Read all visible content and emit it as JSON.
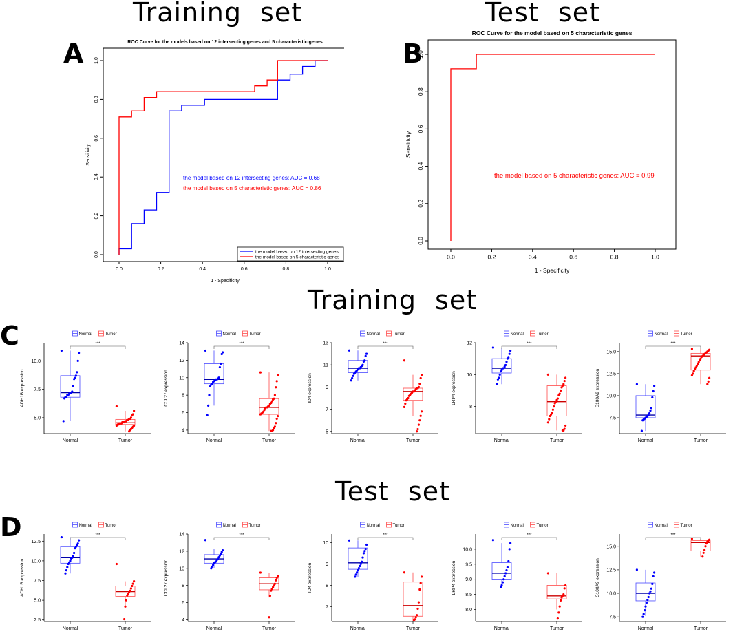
{
  "section_titles": {
    "training_top": "Training  set",
    "test_top": "Test  set",
    "training_mid": "Training  set",
    "test_mid": "Test  set"
  },
  "panel_labels": {
    "a": "A",
    "b": "B",
    "c": "C",
    "d": "D"
  },
  "colors": {
    "blue": "#0000ff",
    "red": "#ff0000",
    "box_blue": "#4a4aff",
    "box_red": "#ff4a4a"
  },
  "chart_data": [
    {
      "id": "roc_train",
      "type": "line",
      "title": "ROC Curve for the models based on 12 intersecting genes and  5 characteristic genes",
      "xlabel": "1 - Specificity",
      "ylabel": "Sensitivity",
      "xlim": [
        0,
        1
      ],
      "ylim": [
        0,
        1
      ],
      "xticks": [
        "0.0",
        "0.2",
        "0.4",
        "0.6",
        "0.8",
        "1.0"
      ],
      "yticks": [
        "0.0",
        "0.2",
        "0.4",
        "0.6",
        "0.8",
        "1.0"
      ],
      "series": [
        {
          "name": "the model based on 12 intersecting genes",
          "color": "#0000ff",
          "x": [
            0,
            0,
            0.06,
            0.06,
            0.12,
            0.12,
            0.18,
            0.18,
            0.24,
            0.24,
            0.3,
            0.3,
            0.41,
            0.41,
            0.76,
            0.76,
            0.82,
            0.82,
            0.88,
            0.88,
            0.94,
            0.94,
            1.0
          ],
          "y": [
            0,
            0.03,
            0.03,
            0.16,
            0.16,
            0.23,
            0.23,
            0.32,
            0.32,
            0.74,
            0.74,
            0.77,
            0.77,
            0.8,
            0.8,
            0.9,
            0.9,
            0.93,
            0.93,
            0.97,
            0.97,
            1.0,
            1.0
          ]
        },
        {
          "name": "the model based on 5 characteristic genes",
          "color": "#ff0000",
          "x": [
            0,
            0,
            0.06,
            0.06,
            0.12,
            0.12,
            0.18,
            0.18,
            0.3,
            0.3,
            0.65,
            0.65,
            0.71,
            0.71,
            0.76,
            0.76,
            1.0
          ],
          "y": [
            0,
            0.71,
            0.71,
            0.74,
            0.74,
            0.81,
            0.81,
            0.84,
            0.84,
            0.84,
            0.84,
            0.87,
            0.87,
            0.9,
            0.9,
            1.0,
            1.0
          ]
        }
      ],
      "annotations": [
        {
          "text": "the model based on 12 intersecting genes: AUC =  0.68",
          "color": "#0000ff"
        },
        {
          "text": "the model based on 5 characteristic genes: AUC =  0.86",
          "color": "#ff0000"
        }
      ],
      "legend": [
        "the model based on 12 intersecting genes",
        "the model based on 5 characteristic genes"
      ],
      "legend_position": "bottom-right"
    },
    {
      "id": "roc_test",
      "type": "line",
      "title": "ROC Curve for the model based on 5 characteristic genes",
      "xlabel": "1 - Specificity",
      "ylabel": "Sensitivity",
      "xlim": [
        0,
        1
      ],
      "ylim": [
        0,
        1
      ],
      "xticks": [
        "0.0",
        "0.2",
        "0.4",
        "0.6",
        "0.8",
        "1.0"
      ],
      "yticks": [
        "0.0",
        "0.2",
        "0.4",
        "0.6",
        "0.8",
        "1.0"
      ],
      "series": [
        {
          "name": "the model based on 5 characteristic genes",
          "color": "#ff0000",
          "x": [
            0,
            0,
            0.125,
            0.125,
            1.0
          ],
          "y": [
            0,
            0.923,
            0.923,
            1.0,
            1.0
          ]
        }
      ],
      "annotations": [
        {
          "text": "the model based on 5 characteristic genes: AUC =  0.99",
          "color": "#ff0000"
        }
      ]
    }
  ],
  "boxplots": {
    "legend": {
      "normal": "Normal",
      "tumor": "Tumor"
    },
    "signif": "***",
    "categories": [
      "Normal",
      "Tumor"
    ],
    "training": [
      {
        "gene": "ADH1B",
        "ylabel": "ADH1B expression",
        "ylim": [
          3.6,
          11.6
        ],
        "ticks": [
          5.0,
          7.5,
          10.0
        ],
        "tick_labels": [
          "5.0",
          "7.5",
          "10.0"
        ],
        "normal": {
          "q1": 6.8,
          "med": 7.2,
          "q3": 8.7,
          "min": 4.7,
          "max": 10.9,
          "pts": [
            10.9,
            10.7,
            10.0,
            9.0,
            8.7,
            8.5,
            8.4,
            7.8,
            7.3,
            7.2,
            7.2,
            7.1,
            7.0,
            7.0,
            6.8,
            6.8,
            6.7,
            4.7
          ]
        },
        "tumor": {
          "q1": 4.4,
          "med": 4.55,
          "q3": 4.85,
          "min": 3.8,
          "max": 5.6,
          "pts": [
            6.0,
            5.6,
            5.3,
            5.2,
            5.0,
            4.9,
            4.9,
            4.8,
            4.8,
            4.7,
            4.7,
            4.6,
            4.6,
            4.6,
            4.5,
            4.5,
            4.5,
            4.4,
            4.4,
            4.3,
            4.3,
            4.2,
            4.1,
            4.0,
            3.9,
            3.8
          ]
        }
      },
      {
        "gene": "CCL27",
        "ylabel": "CCL27 expression",
        "ylim": [
          3.6,
          14
        ],
        "ticks": [
          4,
          6,
          8,
          10,
          12,
          14
        ],
        "tick_labels": [
          "4",
          "6",
          "8",
          "10",
          "12",
          "14"
        ],
        "normal": {
          "q1": 9.3,
          "med": 9.8,
          "q3": 11.6,
          "min": 6.8,
          "max": 13.1,
          "pts": [
            13.1,
            12.9,
            12.7,
            11.6,
            11.2,
            10.0,
            9.9,
            9.8,
            9.8,
            9.7,
            9.6,
            9.5,
            9.3,
            9.2,
            9.0,
            8.0,
            6.8,
            5.7
          ]
        },
        "tumor": {
          "q1": 5.8,
          "med": 6.6,
          "q3": 7.6,
          "min": 3.9,
          "max": 10.6,
          "pts": [
            10.6,
            10.3,
            9.6,
            8.9,
            8.0,
            7.6,
            7.5,
            7.3,
            7.1,
            7.0,
            6.8,
            6.7,
            6.6,
            6.6,
            6.5,
            6.3,
            6.1,
            6.0,
            5.9,
            5.8,
            5.6,
            5.3,
            4.8,
            4.4,
            4.2,
            4.0,
            3.9,
            3.9
          ]
        }
      },
      {
        "gene": "ID4",
        "ylabel": "ID4 expression",
        "ylim": [
          4.8,
          13
        ],
        "ticks": [
          5,
          7,
          9,
          11,
          13
        ],
        "tick_labels": [
          "5",
          "7",
          "9",
          "11",
          "13"
        ],
        "normal": {
          "q1": 10.3,
          "med": 10.7,
          "q3": 11.4,
          "min": 9.6,
          "max": 12.3,
          "pts": [
            12.3,
            12.0,
            11.8,
            11.4,
            11.3,
            11.0,
            10.9,
            10.8,
            10.7,
            10.7,
            10.6,
            10.5,
            10.4,
            10.3,
            10.2,
            10.0,
            9.8,
            9.6
          ]
        },
        "tumor": {
          "q1": 7.8,
          "med": 8.6,
          "q3": 8.9,
          "min": 6.4,
          "max": 10.1,
          "pts": [
            11.4,
            10.1,
            9.8,
            9.3,
            9.0,
            8.9,
            8.9,
            8.8,
            8.7,
            8.6,
            8.6,
            8.5,
            8.4,
            8.3,
            8.2,
            8.0,
            7.9,
            7.8,
            7.5,
            7.2,
            6.8,
            6.4,
            6.0,
            5.6,
            5.2,
            5.0
          ]
        }
      },
      {
        "gene": "LRP4",
        "ylabel": "LRP4 expression",
        "ylim": [
          6.3,
          12
        ],
        "ticks": [
          8,
          10,
          12
        ],
        "tick_labels": [
          "8",
          "10",
          "12"
        ],
        "normal": {
          "q1": 10.1,
          "med": 10.4,
          "q3": 11.0,
          "min": 9.4,
          "max": 11.7,
          "pts": [
            11.7,
            11.5,
            11.3,
            11.1,
            11.0,
            10.8,
            10.6,
            10.5,
            10.4,
            10.4,
            10.3,
            10.2,
            10.0,
            9.8,
            9.7,
            9.4
          ]
        },
        "tumor": {
          "q1": 7.4,
          "med": 8.3,
          "q3": 9.3,
          "min": 6.5,
          "max": 10.0,
          "pts": [
            10.0,
            9.8,
            9.6,
            9.4,
            9.3,
            9.2,
            9.0,
            8.8,
            8.7,
            8.5,
            8.4,
            8.3,
            8.2,
            8.0,
            7.8,
            7.6,
            7.5,
            7.4,
            7.2,
            7.0,
            6.8,
            6.6,
            6.5,
            6.5
          ]
        }
      },
      {
        "gene": "S100A9",
        "ylabel": "S100A9 expression",
        "ylim": [
          5.7,
          16
        ],
        "ticks": [
          7.5,
          10.0,
          12.5,
          15.0
        ],
        "tick_labels": [
          "7.5",
          "10.0",
          "12.5",
          "15.0"
        ],
        "normal": {
          "q1": 7.5,
          "med": 7.8,
          "q3": 10.0,
          "min": 6.0,
          "max": 11.3,
          "pts": [
            11.3,
            11.1,
            10.5,
            9.8,
            8.6,
            8.3,
            8.0,
            7.8,
            7.7,
            7.6,
            7.5,
            7.4,
            7.3,
            7.2,
            6.0
          ]
        },
        "tumor": {
          "q1": 12.9,
          "med": 14.5,
          "q3": 14.8,
          "min": 11.3,
          "max": 15.3,
          "pts": [
            15.3,
            15.2,
            15.1,
            15.0,
            14.9,
            14.8,
            14.7,
            14.6,
            14.5,
            14.4,
            14.2,
            14.0,
            13.8,
            13.6,
            13.4,
            13.2,
            13.0,
            12.8,
            12.5,
            12.3,
            12.0,
            11.6,
            11.3
          ]
        }
      }
    ],
    "test": [
      {
        "gene": "ADH1B",
        "ylabel": "ADH1B expression",
        "ylim": [
          2.3,
          13.4
        ],
        "ticks": [
          2.5,
          5.0,
          7.5,
          10.0,
          12.5
        ],
        "tick_labels": [
          "2.5",
          "5.0",
          "7.5",
          "10.0",
          "12.5"
        ],
        "normal": {
          "q1": 9.7,
          "med": 10.4,
          "q3": 11.8,
          "min": 8.4,
          "max": 13.0,
          "pts": [
            13.0,
            12.6,
            12.2,
            12.0,
            11.8,
            11.6,
            11.0,
            10.6,
            10.4,
            10.3,
            10.0,
            9.8,
            9.6,
            9.2,
            8.8,
            8.4
          ]
        },
        "tumor": {
          "q1": 5.5,
          "med": 6.1,
          "q3": 6.8,
          "min": 4.2,
          "max": 7.4,
          "pts": [
            9.6,
            7.4,
            7.1,
            6.8,
            6.5,
            6.2,
            6.0,
            5.8,
            5.6,
            5.0,
            4.2,
            2.6
          ]
        }
      },
      {
        "gene": "CCL27",
        "ylabel": "CCL27 expression",
        "ylim": [
          3.8,
          14
        ],
        "ticks": [
          4,
          6,
          8,
          10,
          12,
          14
        ],
        "tick_labels": [
          "4",
          "6",
          "8",
          "10",
          "12",
          "14"
        ],
        "normal": {
          "q1": 10.6,
          "med": 11.1,
          "q3": 11.6,
          "min": 10.0,
          "max": 12.3,
          "pts": [
            13.3,
            12.1,
            11.9,
            11.7,
            11.5,
            11.3,
            11.1,
            11.0,
            10.8,
            10.7,
            10.6,
            10.4,
            10.2,
            10.0
          ]
        },
        "tumor": {
          "q1": 7.5,
          "med": 8.2,
          "q3": 8.9,
          "min": 6.6,
          "max": 9.5,
          "pts": [
            9.5,
            9.1,
            8.9,
            8.6,
            8.2,
            8.0,
            7.8,
            7.6,
            7.4,
            6.8,
            4.3
          ]
        }
      },
      {
        "gene": "ID4",
        "ylabel": "ID4 expression",
        "ylim": [
          6.3,
          10.4
        ],
        "ticks": [
          7,
          8,
          9,
          10
        ],
        "tick_labels": [
          "7",
          "8",
          "9",
          "10"
        ],
        "normal": {
          "q1": 8.75,
          "med": 9.05,
          "q3": 9.75,
          "min": 8.4,
          "max": 10.1,
          "pts": [
            10.1,
            9.9,
            9.7,
            9.6,
            9.5,
            9.3,
            9.1,
            9.0,
            8.9,
            8.8,
            8.7,
            8.6,
            8.5,
            8.4
          ]
        },
        "tumor": {
          "q1": 6.55,
          "med": 7.05,
          "q3": 8.15,
          "min": 6.35,
          "max": 8.6,
          "pts": [
            8.6,
            8.4,
            8.1,
            7.8,
            7.2,
            6.9,
            6.6,
            6.5,
            6.4,
            6.35
          ]
        }
      },
      {
        "gene": "LRP4",
        "ylabel": "LRP4 expression",
        "ylim": [
          7.6,
          10.5
        ],
        "ticks": [
          8.0,
          8.5,
          9.0,
          9.5,
          10.0
        ],
        "tick_labels": [
          "8.0",
          "8.5",
          "9.0",
          "9.5",
          "10.0"
        ],
        "normal": {
          "q1": 8.98,
          "med": 9.2,
          "q3": 9.55,
          "min": 8.7,
          "max": 10.2,
          "pts": [
            10.3,
            10.2,
            10.0,
            9.6,
            9.4,
            9.3,
            9.2,
            9.1,
            9.0,
            8.9,
            8.8,
            8.75
          ]
        },
        "tumor": {
          "q1": 8.35,
          "med": 8.45,
          "q3": 8.8,
          "min": 8.0,
          "max": 9.2,
          "pts": [
            9.2,
            8.8,
            8.7,
            8.5,
            8.45,
            8.4,
            8.3,
            8.1,
            7.9,
            7.7
          ]
        }
      },
      {
        "gene": "S100A9",
        "ylabel": "S100A9 expression",
        "ylim": [
          7.0,
          16.3
        ],
        "ticks": [
          7.5,
          10.0,
          12.5,
          15.0
        ],
        "tick_labels": [
          "7.5",
          "10.0",
          "12.5",
          "15.0"
        ],
        "normal": {
          "q1": 9.2,
          "med": 10.0,
          "q3": 11.1,
          "min": 7.6,
          "max": 12.5,
          "pts": [
            12.5,
            12.2,
            11.8,
            11.0,
            10.5,
            10.2,
            10.0,
            9.6,
            9.3,
            9.0,
            8.6,
            8.2,
            7.8,
            7.5
          ]
        },
        "tumor": {
          "q1": 14.5,
          "med": 15.4,
          "q3": 15.6,
          "min": 13.9,
          "max": 15.8,
          "pts": [
            15.8,
            15.7,
            15.6,
            15.5,
            15.3,
            15.0,
            14.6,
            14.3,
            13.9
          ]
        }
      }
    ]
  }
}
